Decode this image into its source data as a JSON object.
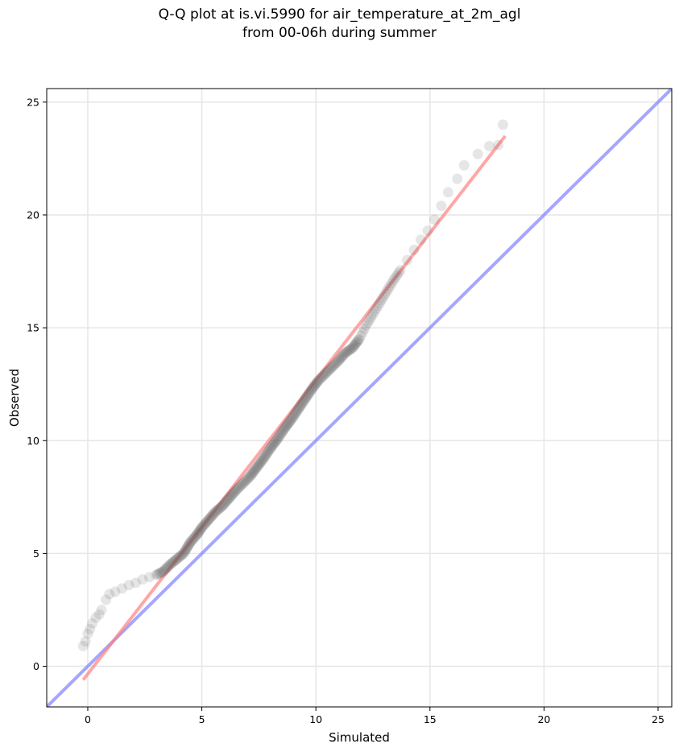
{
  "title": [
    "Q-Q plot at is.vi.5990 for air_temperature_at_2m_agl",
    "from 00-06h during summer"
  ],
  "chart_data": {
    "type": "scatter",
    "title": "Q-Q plot at is.vi.5990 for air_temperature_at_2m_agl from 00-06h during summer",
    "xlabel": "Simulated",
    "ylabel": "Observed",
    "xlim": [
      -1.8,
      25.6
    ],
    "ylim": [
      -1.8,
      25.6
    ],
    "xticks": [
      0,
      5,
      10,
      15,
      20,
      25
    ],
    "yticks": [
      0,
      5,
      10,
      15,
      20,
      25
    ],
    "grid": true,
    "colors": {
      "points": "#555555",
      "fit_line": "#ff8080",
      "identity_line": "#8080ff",
      "grid": "#e6e6e6"
    },
    "fit_line": {
      "x": [
        -0.2,
        18.3
      ],
      "y": [
        -0.6,
        23.5
      ]
    },
    "identity_line": {
      "x": [
        -1.8,
        25.6
      ],
      "y": [
        -1.8,
        25.6
      ]
    },
    "points": {
      "x": [
        -0.2,
        -0.1,
        0.0,
        0.1,
        0.2,
        0.35,
        0.5,
        0.6,
        0.8,
        0.95,
        1.2,
        1.5,
        1.8,
        2.1,
        2.4,
        2.7,
        3.0,
        3.3,
        3.6,
        3.9,
        4.2,
        4.5,
        4.8,
        5.0,
        5.3,
        5.6,
        5.9,
        6.2,
        6.5,
        6.8,
        7.1,
        7.4,
        7.7,
        8.0,
        8.3,
        8.6,
        8.9,
        9.2,
        9.5,
        9.8,
        10.1,
        10.4,
        10.7,
        11.0,
        11.3,
        11.6,
        11.9,
        12.2,
        12.5,
        12.8,
        13.1,
        13.4,
        13.7,
        14.0,
        14.3,
        14.6,
        14.9,
        15.2,
        15.5,
        15.8,
        16.2,
        16.5,
        17.1,
        17.6,
        18.0,
        18.2
      ],
      "y": [
        0.9,
        1.1,
        1.45,
        1.65,
        1.9,
        2.15,
        2.3,
        2.5,
        2.95,
        3.2,
        3.3,
        3.45,
        3.6,
        3.7,
        3.85,
        3.95,
        4.05,
        4.2,
        4.5,
        4.75,
        5.0,
        5.5,
        5.85,
        6.15,
        6.5,
        6.85,
        7.1,
        7.45,
        7.8,
        8.1,
        8.4,
        8.8,
        9.2,
        9.65,
        10.05,
        10.5,
        10.9,
        11.35,
        11.8,
        12.25,
        12.65,
        12.95,
        13.25,
        13.55,
        13.9,
        14.1,
        14.5,
        15.1,
        15.6,
        16.1,
        16.6,
        17.1,
        17.55,
        18.0,
        18.45,
        18.9,
        19.3,
        19.8,
        20.4,
        21.0,
        21.6,
        22.2,
        22.7,
        23.05,
        23.1,
        24.0
      ]
    }
  }
}
